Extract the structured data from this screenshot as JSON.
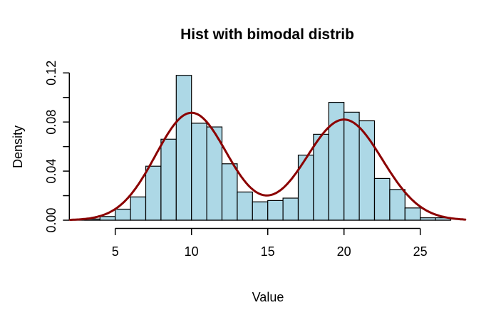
{
  "figure": {
    "background": "#ffffff"
  },
  "chart_data": {
    "type": "bar",
    "subtype": "histogram-with-density-curve",
    "title": "Hist with bimodal distrib",
    "xlabel": "Value",
    "ylabel": "Density",
    "xlim": [
      2,
      28.5
    ],
    "ylim": [
      0,
      0.12
    ],
    "x_ticks": [
      5,
      10,
      15,
      20,
      25
    ],
    "y_ticks": [
      0,
      0.02,
      0.04,
      0.06,
      0.08,
      0.1,
      0.12
    ],
    "y_tick_labels": [
      "0.00",
      "",
      "0.04",
      "",
      "0.08",
      "",
      "0.12"
    ],
    "grid": false,
    "legend": "none",
    "bar_fill": "#ADD8E6",
    "bar_stroke": "#000000",
    "curve_color": "#8B0000",
    "bins": {
      "start": 3,
      "width": 1,
      "densities": [
        0.001,
        0.003,
        0.009,
        0.019,
        0.044,
        0.066,
        0.118,
        0.079,
        0.076,
        0.046,
        0.023,
        0.015,
        0.016,
        0.018,
        0.053,
        0.07,
        0.096,
        0.088,
        0.081,
        0.034,
        0.025,
        0.01,
        0.002,
        0.002
      ]
    },
    "baseline_extent": [
      2,
      27
    ],
    "curve": {
      "model": "gaussian-mixture",
      "components": [
        {
          "mean": 10,
          "peak": 0.0875,
          "sd": 2.35
        },
        {
          "mean": 20,
          "peak": 0.082,
          "sd": 2.5
        }
      ],
      "x_range": [
        2.05,
        27.95
      ],
      "valley": {
        "x": 15.2,
        "y": 0.0205
      }
    }
  }
}
